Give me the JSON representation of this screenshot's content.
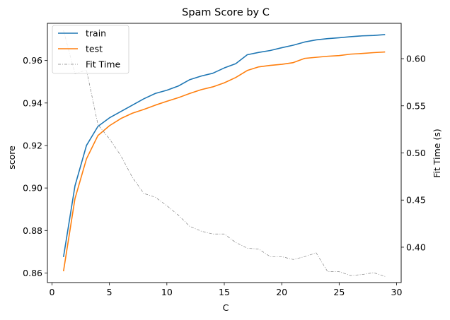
{
  "chart_data": {
    "type": "line",
    "title": "Spam Score by C",
    "xlabel": "C",
    "ylabel": "score",
    "y2label": "Fit Time (s)",
    "xlim": [
      -0.4,
      30.4
    ],
    "ylim": [
      0.8555,
      0.9775
    ],
    "y2lim": [
      0.3625,
      0.6375
    ],
    "xticks": [
      0,
      5,
      10,
      15,
      20,
      25,
      30
    ],
    "yticks": [
      0.86,
      0.88,
      0.9,
      0.92,
      0.94,
      0.96
    ],
    "y2ticks": [
      0.4,
      0.45,
      0.5,
      0.55,
      0.6
    ],
    "legend_position": "upper left",
    "x": [
      1,
      2,
      3,
      4,
      5,
      6,
      7,
      8,
      9,
      10,
      11,
      12,
      13,
      14,
      15,
      16,
      17,
      18,
      19,
      20,
      21,
      22,
      23,
      24,
      25,
      26,
      27,
      28,
      29
    ],
    "series": [
      {
        "name": "train",
        "axis": "left",
        "color": "#1f77b4",
        "style": "solid",
        "values": [
          0.8675,
          0.901,
          0.92,
          0.929,
          0.933,
          0.936,
          0.939,
          0.942,
          0.9445,
          0.946,
          0.948,
          0.951,
          0.9527,
          0.954,
          0.9565,
          0.9585,
          0.9627,
          0.9638,
          0.9647,
          0.966,
          0.9672,
          0.9687,
          0.9697,
          0.9703,
          0.9707,
          0.9712,
          0.9716,
          0.9718,
          0.9722
        ]
      },
      {
        "name": "test",
        "axis": "left",
        "color": "#ff7f0e",
        "style": "solid",
        "values": [
          0.8608,
          0.895,
          0.9137,
          0.9247,
          0.9293,
          0.9327,
          0.9352,
          0.937,
          0.939,
          0.9408,
          0.9425,
          0.9445,
          0.9463,
          0.9476,
          0.9495,
          0.952,
          0.9553,
          0.957,
          0.9577,
          0.9582,
          0.959,
          0.961,
          0.9615,
          0.962,
          0.9623,
          0.963,
          0.9633,
          0.9637,
          0.964
        ]
      },
      {
        "name": "Fit Time",
        "axis": "right",
        "color": "#808080",
        "style": "dashdot",
        "values": [
          0.63,
          0.584,
          0.588,
          0.53,
          0.515,
          0.497,
          0.474,
          0.457,
          0.453,
          0.444,
          0.434,
          0.422,
          0.417,
          0.414,
          0.414,
          0.405,
          0.399,
          0.398,
          0.39,
          0.39,
          0.387,
          0.39,
          0.394,
          0.374,
          0.374,
          0.37,
          0.371,
          0.373,
          0.369
        ]
      }
    ]
  }
}
